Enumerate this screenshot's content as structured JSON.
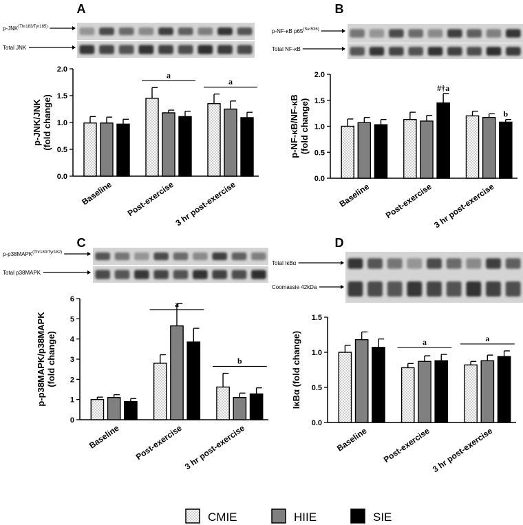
{
  "colors": {
    "CMIE": "#ffffff",
    "HIIE": "#808080",
    "SIE": "#000000",
    "blot_bg": "#d4d4d4",
    "band": "#222222"
  },
  "legend": {
    "items": [
      {
        "name": "CMIE",
        "pattern": "dots"
      },
      {
        "name": "HIIE",
        "pattern": "gray"
      },
      {
        "name": "SIE",
        "pattern": "black"
      }
    ]
  },
  "chart_data": [
    {
      "type": "bar",
      "panel": "A",
      "blot_labels": [
        "p-JNK",
        "(Thr183/Tyr185)",
        "Total JNK"
      ],
      "ylabel": [
        "p-JNK/JNK",
        "(fold change)"
      ],
      "categories": [
        "Baseline",
        "Post-exercise",
        "3 hr post-exercise"
      ],
      "ylim": [
        0,
        2.0
      ],
      "yticks": [
        "0.0",
        "0.5",
        "1.0",
        "1.5",
        "2.0"
      ],
      "series": [
        {
          "name": "CMIE",
          "values": [
            0.99,
            1.45,
            1.35
          ],
          "errors": [
            0.12,
            0.2,
            0.18
          ]
        },
        {
          "name": "HIIE",
          "values": [
            0.99,
            1.18,
            1.25
          ],
          "errors": [
            0.11,
            0.05,
            0.15
          ]
        },
        {
          "name": "SIE",
          "values": [
            0.97,
            1.11,
            1.09
          ],
          "errors": [
            0.09,
            0.1,
            0.1
          ]
        }
      ],
      "significance": [
        {
          "group": 1,
          "label": "a"
        },
        {
          "group": 2,
          "label": "a"
        }
      ],
      "marker_labels": []
    },
    {
      "type": "bar",
      "panel": "B",
      "blot_labels": [
        "p-NF-κB p65",
        "(Ser536)",
        "Total NF-κB"
      ],
      "ylabel": [
        "p-NF-κB/NF-κB",
        "(fold change)"
      ],
      "categories": [
        "Baseline",
        "Post-exercise",
        "3 hr post-exercise"
      ],
      "ylim": [
        0,
        2.0
      ],
      "yticks": [
        "0.0",
        "0.5",
        "1.0",
        "1.5",
        "2.0"
      ],
      "series": [
        {
          "name": "CMIE",
          "values": [
            1.0,
            1.13,
            1.2
          ],
          "errors": [
            0.14,
            0.14,
            0.09
          ]
        },
        {
          "name": "HIIE",
          "values": [
            1.07,
            1.1,
            1.17
          ],
          "errors": [
            0.1,
            0.11,
            0.07
          ]
        },
        {
          "name": "SIE",
          "values": [
            1.03,
            1.45,
            1.08
          ],
          "errors": [
            0.1,
            0.18,
            0.05
          ]
        }
      ],
      "significance": [],
      "marker_labels": [
        {
          "group": 1,
          "series": 2,
          "label": "#†a"
        },
        {
          "group": 2,
          "series": 2,
          "label": "b"
        }
      ]
    },
    {
      "type": "bar",
      "panel": "C",
      "blot_labels": [
        "p-p38MAPK",
        "(Thr180/Tyr182)",
        "Total p38MAPK"
      ],
      "ylabel": [
        "p-p38MAPK/p38MAPK",
        "(fold change)"
      ],
      "categories": [
        "Baseline",
        "Post-exercise",
        "3 hr post-exercise"
      ],
      "ylim": [
        0,
        6
      ],
      "yticks": [
        "0",
        "1",
        "2",
        "3",
        "4",
        "5",
        "6"
      ],
      "series": [
        {
          "name": "CMIE",
          "values": [
            1.0,
            2.8,
            1.62
          ],
          "errors": [
            0.12,
            0.42,
            0.68
          ]
        },
        {
          "name": "HIIE",
          "values": [
            1.1,
            4.65,
            1.1
          ],
          "errors": [
            0.14,
            1.1,
            0.22
          ]
        },
        {
          "name": "SIE",
          "values": [
            0.9,
            3.85,
            1.28
          ],
          "errors": [
            0.15,
            0.68,
            0.3
          ]
        }
      ],
      "significance": [
        {
          "group": 1,
          "label": "a"
        },
        {
          "group": 2,
          "label": "b"
        }
      ],
      "marker_labels": []
    },
    {
      "type": "bar",
      "panel": "D",
      "blot_labels": [
        "Total IκBα",
        "",
        "Coomassie 42kDa"
      ],
      "ylabel": [
        "IκBα (fold change)"
      ],
      "categories": [
        "Baseline",
        "Post-exercise",
        "3 hr post-exercise"
      ],
      "ylim": [
        0,
        1.5
      ],
      "yticks": [
        "0.0",
        "0.5",
        "1.0",
        "1.5"
      ],
      "series": [
        {
          "name": "CMIE",
          "values": [
            1.0,
            0.78,
            0.82
          ],
          "errors": [
            0.1,
            0.06,
            0.05
          ]
        },
        {
          "name": "HIIE",
          "values": [
            1.18,
            0.87,
            0.88
          ],
          "errors": [
            0.11,
            0.08,
            0.08
          ]
        },
        {
          "name": "SIE",
          "values": [
            1.07,
            0.88,
            0.94
          ],
          "errors": [
            0.12,
            0.09,
            0.08
          ]
        }
      ],
      "significance": [
        {
          "group": 1,
          "label": "a"
        },
        {
          "group": 2,
          "label": "a"
        }
      ],
      "marker_labels": []
    }
  ]
}
